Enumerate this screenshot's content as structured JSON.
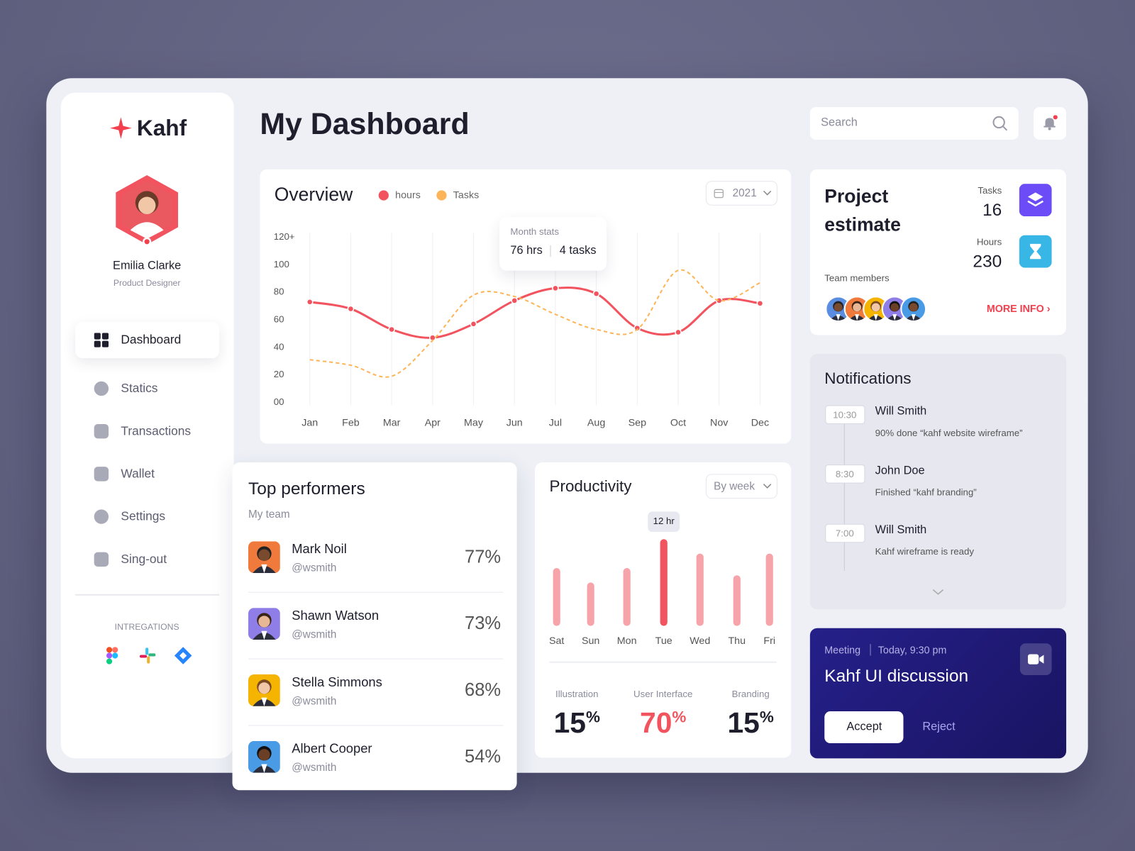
{
  "brand": {
    "name": "Kahf"
  },
  "profile": {
    "name": "Emilia Clarke",
    "role": "Product Designer"
  },
  "nav": [
    "Dashboard",
    "Statics",
    "Transactions",
    "Wallet",
    "Settings",
    "Sing-out"
  ],
  "integrations_title": "INTREGATIONS",
  "page_title": "My Dashboard",
  "search_placeholder": "Search",
  "chart_data": [
    {
      "type": "line",
      "title": "Overview",
      "period": "2021",
      "categories": [
        "Jan",
        "Feb",
        "Mar",
        "Apr",
        "May",
        "Jun",
        "Jul",
        "Aug",
        "Sep",
        "Oct",
        "Nov",
        "Dec"
      ],
      "series": [
        {
          "name": "hours",
          "color": "#f2545f",
          "values": [
            73,
            68,
            53,
            47,
            57,
            74,
            83,
            79,
            54,
            51,
            74,
            72
          ]
        },
        {
          "name": "Tasks",
          "color": "#fdb55a",
          "values": [
            31,
            27,
            19,
            45,
            78,
            77,
            64,
            53,
            53,
            96,
            74,
            87
          ]
        }
      ],
      "ylim": [
        0,
        120
      ],
      "yticks": [
        {
          "value": 0,
          "label": "00"
        },
        20,
        40,
        60,
        80,
        100,
        {
          "value": 120,
          "label": "120+"
        }
      ],
      "grid": true,
      "tooltip": {
        "title": "Month stats",
        "hours": "76 hrs",
        "tasks": "4 tasks"
      }
    },
    {
      "type": "bar",
      "title": "Productivity",
      "period": "By week",
      "categories": [
        "Sat",
        "Sun",
        "Mon",
        "Tue",
        "Wed",
        "Thu",
        "Fri"
      ],
      "values": [
        8,
        6,
        8,
        12,
        10,
        7,
        10
      ],
      "value_labels": [
        null,
        null,
        null,
        "12 hr",
        null,
        null,
        null
      ],
      "colors": [
        "#f7a3aa",
        "#f7a3aa",
        "#f7a3aa",
        "#f2545f",
        "#f7a3aa",
        "#f7a3aa",
        "#f7a3aa"
      ]
    }
  ],
  "productivity_stats": [
    {
      "label": "Illustration",
      "value": 15,
      "unit": "%"
    },
    {
      "label": "User Interface",
      "value": 70,
      "unit": "%"
    },
    {
      "label": "Branding",
      "value": 15,
      "unit": "%"
    }
  ],
  "top_performers": {
    "title": "Top performers",
    "subtitle": "My team",
    "rows": [
      {
        "name": "Mark Noil",
        "handle": "@wsmith",
        "score": "77%"
      },
      {
        "name": "Shawn Watson",
        "handle": "@wsmith",
        "score": "73%"
      },
      {
        "name": "Stella Simmons",
        "handle": "@wsmith",
        "score": "68%"
      },
      {
        "name": "Albert Cooper",
        "handle": "@wsmith",
        "score": "54%"
      }
    ]
  },
  "project_estimate": {
    "title": "Project estimate",
    "tasks_label": "Tasks",
    "tasks": 16,
    "hours_label": "Hours",
    "hours": 230,
    "team_label": "Team members",
    "more": "MORE INFO"
  },
  "notifications": {
    "title": "Notifications",
    "items": [
      {
        "time": "10:30",
        "name": "Will Smith",
        "text": "90% done “kahf website wireframe”"
      },
      {
        "time": "8:30",
        "name": "John Doe",
        "text": "Finished “kahf branding”"
      },
      {
        "time": "7:00",
        "name": "Will Smith",
        "text": "Kahf wireframe is ready"
      }
    ]
  },
  "meeting": {
    "label": "Meeting",
    "time": "Today, 9:30 pm",
    "title": "Kahf UI discussion",
    "accept": "Accept",
    "reject": "Reject"
  }
}
